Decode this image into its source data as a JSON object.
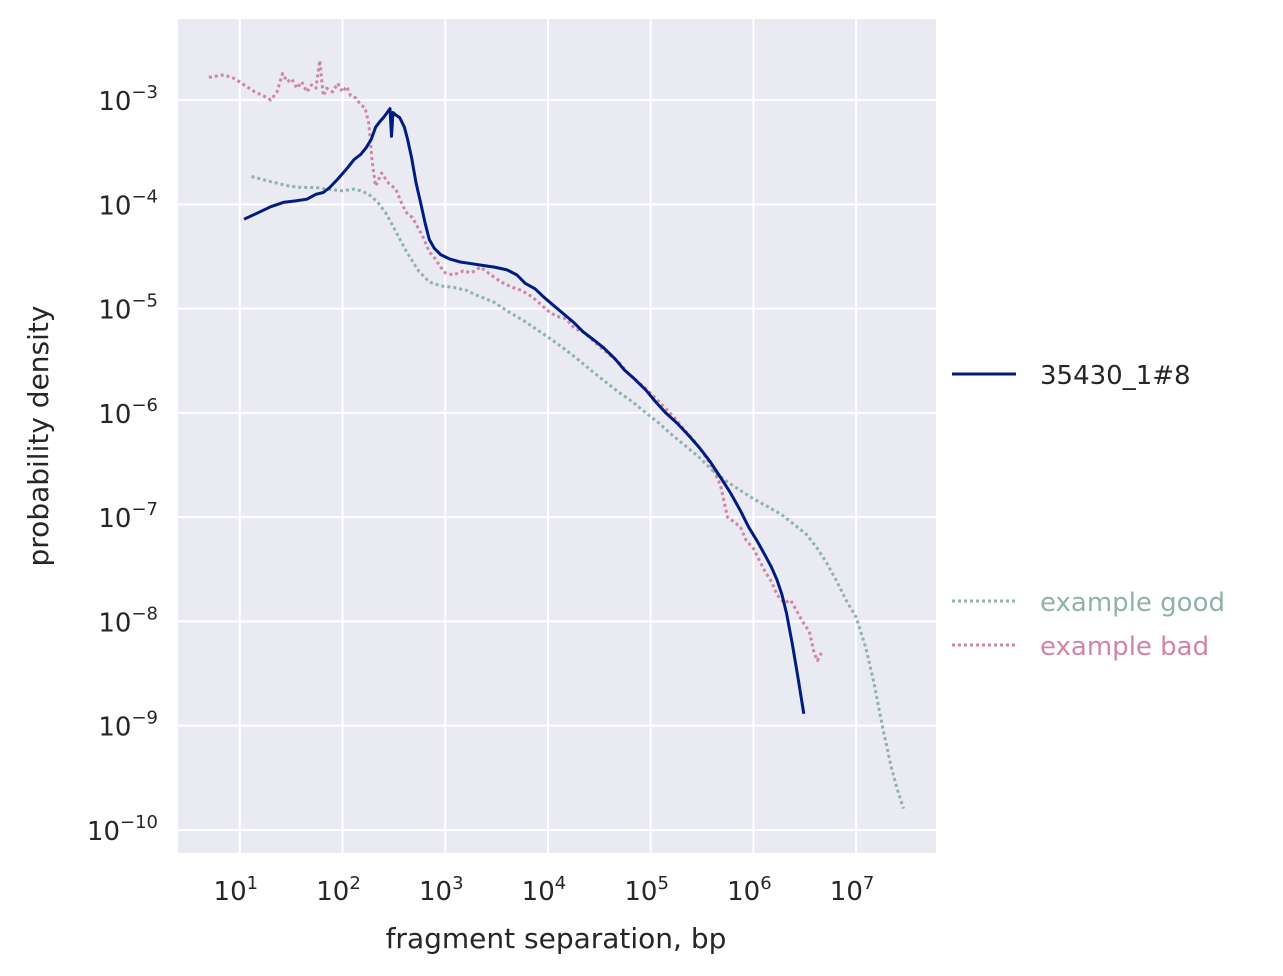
{
  "chart_data": {
    "type": "line",
    "title": "",
    "xlabel": "fragment separation, bp",
    "ylabel": "probability density",
    "xscale": "log",
    "yscale": "log",
    "xlim": [
      2.5,
      60000000
    ],
    "ylim": [
      6e-11,
      0.006
    ],
    "grid": true,
    "background_color": "#EAEAF2",
    "x_ticks": [
      {
        "value": 10,
        "base": "10",
        "exp": "1"
      },
      {
        "value": 100,
        "base": "10",
        "exp": "2"
      },
      {
        "value": 1000,
        "base": "10",
        "exp": "3"
      },
      {
        "value": 10000,
        "base": "10",
        "exp": "4"
      },
      {
        "value": 100000,
        "base": "10",
        "exp": "5"
      },
      {
        "value": 1000000,
        "base": "10",
        "exp": "6"
      },
      {
        "value": 10000000,
        "base": "10",
        "exp": "7"
      }
    ],
    "y_ticks": [
      {
        "value": 0.001,
        "base": "10",
        "exp": "−3"
      },
      {
        "value": 0.0001,
        "base": "10",
        "exp": "−4"
      },
      {
        "value": 1e-05,
        "base": "10",
        "exp": "−5"
      },
      {
        "value": 1e-06,
        "base": "10",
        "exp": "−6"
      },
      {
        "value": 1e-07,
        "base": "10",
        "exp": "−7"
      },
      {
        "value": 1e-08,
        "base": "10",
        "exp": "−8"
      },
      {
        "value": 1e-09,
        "base": "10",
        "exp": "−9"
      },
      {
        "value": 1e-10,
        "base": "10",
        "exp": "−10"
      }
    ],
    "legend_placement": "right, outside plot",
    "series": [
      {
        "name": "35430_1#8",
        "color": "#001C7F",
        "style": "solid",
        "points": [
          [
            11,
            7.2e-05
          ],
          [
            15,
            8.3e-05
          ],
          [
            20,
            9.5e-05
          ],
          [
            27,
            0.000105
          ],
          [
            35,
            0.000108
          ],
          [
            45,
            0.000112
          ],
          [
            55,
            0.000125
          ],
          [
            65,
            0.00013
          ],
          [
            75,
            0.000145
          ],
          [
            90,
            0.000175
          ],
          [
            110,
            0.00022
          ],
          [
            130,
            0.00027
          ],
          [
            150,
            0.0003
          ],
          [
            170,
            0.00035
          ],
          [
            190,
            0.00042
          ],
          [
            210,
            0.00055
          ],
          [
            230,
            0.00062
          ],
          [
            250,
            0.00068
          ],
          [
            270,
            0.00075
          ],
          [
            290,
            0.00083
          ],
          [
            300,
            0.00045
          ],
          [
            310,
            0.00076
          ],
          [
            330,
            0.00072
          ],
          [
            360,
            0.00068
          ],
          [
            400,
            0.00055
          ],
          [
            430,
            0.00042
          ],
          [
            470,
            0.00028
          ],
          [
            520,
            0.00016
          ],
          [
            580,
            0.0001
          ],
          [
            640,
            6.5e-05
          ],
          [
            700,
            4.6e-05
          ],
          [
            780,
            3.8e-05
          ],
          [
            900,
            3.3e-05
          ],
          [
            1100,
            3e-05
          ],
          [
            1400,
            2.8e-05
          ],
          [
            1800,
            2.7e-05
          ],
          [
            2300,
            2.6e-05
          ],
          [
            3000,
            2.5e-05
          ],
          [
            4000,
            2.35e-05
          ],
          [
            5000,
            2.1e-05
          ],
          [
            6000,
            1.75e-05
          ],
          [
            7500,
            1.55e-05
          ],
          [
            9000,
            1.3e-05
          ],
          [
            11000,
            1.1e-05
          ],
          [
            14000,
            9e-06
          ],
          [
            18000,
            7.3e-06
          ],
          [
            22000,
            6e-06
          ],
          [
            28000,
            5e-06
          ],
          [
            35000,
            4.2e-06
          ],
          [
            45000,
            3.3e-06
          ],
          [
            55000,
            2.6e-06
          ],
          [
            70000,
            2.1e-06
          ],
          [
            90000,
            1.65e-06
          ],
          [
            110000,
            1.3e-06
          ],
          [
            140000,
            1e-06
          ],
          [
            180000,
            8e-07
          ],
          [
            230000,
            6.2e-07
          ],
          [
            300000,
            4.6e-07
          ],
          [
            380000,
            3.4e-07
          ],
          [
            480000,
            2.4e-07
          ],
          [
            600000,
            1.7e-07
          ],
          [
            750000,
            1.15e-07
          ],
          [
            900000,
            8e-08
          ],
          [
            1100000,
            5.8e-08
          ],
          [
            1300000,
            4.3e-08
          ],
          [
            1500000,
            3.3e-08
          ],
          [
            1700000,
            2.5e-08
          ],
          [
            1900000,
            1.8e-08
          ],
          [
            2100000,
            1.2e-08
          ],
          [
            2400000,
            6e-09
          ],
          [
            2700000,
            3e-09
          ],
          [
            3100000,
            1.3e-09
          ]
        ]
      },
      {
        "name": "example good",
        "color": "#8FB2AD",
        "style": "dotted",
        "points": [
          [
            13,
            0.000185
          ],
          [
            20,
            0.000165
          ],
          [
            30,
            0.00015
          ],
          [
            40,
            0.000145
          ],
          [
            55,
            0.000145
          ],
          [
            70,
            0.00014
          ],
          [
            100,
            0.000135
          ],
          [
            130,
            0.00014
          ],
          [
            150,
            0.000135
          ],
          [
            180,
            0.000125
          ],
          [
            220,
            0.000105
          ],
          [
            270,
            8e-05
          ],
          [
            330,
            5.5e-05
          ],
          [
            420,
            3.5e-05
          ],
          [
            550,
            2.3e-05
          ],
          [
            700,
            1.8e-05
          ],
          [
            900,
            1.65e-05
          ],
          [
            1200,
            1.6e-05
          ],
          [
            1600,
            1.5e-05
          ],
          [
            2000,
            1.35e-05
          ],
          [
            3000,
            1.15e-05
          ],
          [
            4000,
            9.5e-06
          ],
          [
            6000,
            7.5e-06
          ],
          [
            8000,
            6.2e-06
          ],
          [
            11000,
            5e-06
          ],
          [
            15000,
            4e-06
          ],
          [
            20000,
            3.2e-06
          ],
          [
            27000,
            2.5e-06
          ],
          [
            36000,
            2e-06
          ],
          [
            48000,
            1.6e-06
          ],
          [
            65000,
            1.3e-06
          ],
          [
            90000,
            1e-06
          ],
          [
            120000,
            8e-07
          ],
          [
            160000,
            6.2e-07
          ],
          [
            220000,
            4.8e-07
          ],
          [
            300000,
            3.7e-07
          ],
          [
            400000,
            2.8e-07
          ],
          [
            550000,
            2.2e-07
          ],
          [
            750000,
            1.8e-07
          ],
          [
            1000000,
            1.5e-07
          ],
          [
            1400000,
            1.25e-07
          ],
          [
            1900000,
            1.05e-07
          ],
          [
            2500000,
            8.5e-08
          ],
          [
            3300000,
            6.8e-08
          ],
          [
            4200000,
            5e-08
          ],
          [
            5200000,
            3.6e-08
          ],
          [
            6500000,
            2.4e-08
          ],
          [
            8000000,
            1.6e-08
          ],
          [
            10000000,
            1.1e-08
          ],
          [
            12500000,
            5.5e-09
          ],
          [
            15000000,
            2.5e-09
          ],
          [
            18000000,
            1e-09
          ],
          [
            22000000,
            4e-10
          ],
          [
            26000000,
            2.2e-10
          ],
          [
            29000000,
            1.6e-10
          ]
        ]
      },
      {
        "name": "example bad",
        "color": "#D085A4",
        "style": "dotted",
        "points": [
          [
            5,
            0.00165
          ],
          [
            7,
            0.00175
          ],
          [
            9,
            0.0016
          ],
          [
            11,
            0.0014
          ],
          [
            14,
            0.0012
          ],
          [
            17,
            0.0011
          ],
          [
            20,
            0.001
          ],
          [
            23,
            0.0012
          ],
          [
            26,
            0.0018
          ],
          [
            29,
            0.0015
          ],
          [
            32,
            0.0016
          ],
          [
            36,
            0.0013
          ],
          [
            40,
            0.0015
          ],
          [
            45,
            0.0012
          ],
          [
            50,
            0.0014
          ],
          [
            55,
            0.0013
          ],
          [
            60,
            0.0024
          ],
          [
            65,
            0.0011
          ],
          [
            70,
            0.0013
          ],
          [
            80,
            0.0012
          ],
          [
            90,
            0.00145
          ],
          [
            100,
            0.0012
          ],
          [
            110,
            0.00135
          ],
          [
            120,
            0.0011
          ],
          [
            135,
            0.00105
          ],
          [
            150,
            0.0009
          ],
          [
            165,
            0.00085
          ],
          [
            180,
            0.0006
          ],
          [
            195,
            0.00025
          ],
          [
            210,
            0.00015
          ],
          [
            240,
            0.0002
          ],
          [
            280,
            0.00016
          ],
          [
            330,
            0.00014
          ],
          [
            380,
            0.0001
          ],
          [
            430,
            8e-05
          ],
          [
            480,
            7.5e-05
          ],
          [
            540,
            6e-05
          ],
          [
            600,
            5e-05
          ],
          [
            700,
            3.5e-05
          ],
          [
            800,
            3e-05
          ],
          [
            900,
            2.5e-05
          ],
          [
            1000,
            2.2e-05
          ],
          [
            1200,
            2.1e-05
          ],
          [
            1500,
            2.3e-05
          ],
          [
            1800,
            2.2e-05
          ],
          [
            2200,
            2.5e-05
          ],
          [
            2800,
            2.1e-05
          ],
          [
            3500,
            1.8e-05
          ],
          [
            4500,
            1.6e-05
          ],
          [
            5500,
            1.5e-05
          ],
          [
            7000,
            1.3e-05
          ],
          [
            8500,
            1.1e-05
          ],
          [
            10000,
            9.5e-06
          ],
          [
            12000,
            8.5e-06
          ],
          [
            15000,
            8e-06
          ],
          [
            18000,
            6.5e-06
          ],
          [
            22000,
            6e-06
          ],
          [
            27000,
            5e-06
          ],
          [
            33000,
            4.2e-06
          ],
          [
            40000,
            3.6e-06
          ],
          [
            50000,
            3e-06
          ],
          [
            60000,
            2.4e-06
          ],
          [
            75000,
            2e-06
          ],
          [
            90000,
            1.7e-06
          ],
          [
            110000,
            1.4e-06
          ],
          [
            140000,
            1.1e-06
          ],
          [
            170000,
            9e-07
          ],
          [
            210000,
            7e-07
          ],
          [
            260000,
            5.5e-07
          ],
          [
            320000,
            4.2e-07
          ],
          [
            400000,
            3e-07
          ],
          [
            480000,
            2e-07
          ],
          [
            560000,
            1e-07
          ],
          [
            650000,
            9e-08
          ],
          [
            750000,
            8e-08
          ],
          [
            850000,
            6e-08
          ],
          [
            1000000,
            5e-08
          ],
          [
            1150000,
            3.8e-08
          ],
          [
            1300000,
            3e-08
          ],
          [
            1500000,
            2.4e-08
          ],
          [
            1700000,
            1.8e-08
          ],
          [
            2000000,
            1.5e-08
          ],
          [
            2300000,
            1.6e-08
          ],
          [
            2600000,
            1.3e-08
          ],
          [
            3000000,
            1e-08
          ],
          [
            3500000,
            8e-09
          ],
          [
            3900000,
            5e-09
          ],
          [
            4200000,
            4.2e-09
          ],
          [
            4600000,
            5e-09
          ]
        ]
      }
    ]
  }
}
